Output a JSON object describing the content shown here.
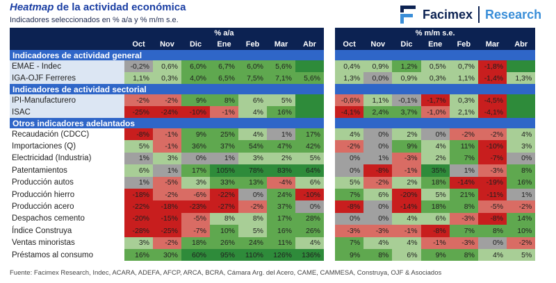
{
  "header": {
    "title_em": "Heatmap",
    "title_rest": " de la actividad económica",
    "subtitle": "Indicadores seleccionados en % a/a y % m/m s.e.",
    "brand": "Facimex",
    "brand_section": "Research"
  },
  "colors": {
    "red": "#c81e1e",
    "light_red": "#d96c64",
    "grey": "#a0a0a0",
    "light_green": "#a8ce96",
    "green": "#5fa84f",
    "dark_green": "#2e8b3a",
    "header": "#0c2252",
    "section": "#2f66c8"
  },
  "chart_data": {
    "type": "heatmap",
    "title": "Heatmap de la actividad económica",
    "groups": [
      {
        "label": "% a/a",
        "columns": [
          "Oct",
          "Nov",
          "Dic",
          "Ene",
          "Feb",
          "Mar",
          "Abr"
        ]
      },
      {
        "label": "% m/m s.e.",
        "columns": [
          "Oct",
          "Nov",
          "Dic",
          "Ene",
          "Feb",
          "Mar",
          "Abr"
        ]
      }
    ],
    "sections": [
      {
        "title": "Indicadores de actividad general",
        "rows": [
          {
            "label": "EMAE - Indec",
            "yoy": [
              "-0,2%",
              "0,6%",
              "6,0%",
              "6,7%",
              "6,0%",
              "5,6%",
              ""
            ],
            "yoy_c": [
              "grey",
              "light_green",
              "green",
              "green",
              "green",
              "green",
              "dark_green"
            ],
            "mom": [
              "0,4%",
              "0,9%",
              "1,2%",
              "0,5%",
              "0,7%",
              "-1,8%",
              ""
            ],
            "mom_c": [
              "light_green",
              "light_green",
              "green",
              "light_green",
              "light_green",
              "red",
              "dark_green"
            ]
          },
          {
            "label": "IGA-OJF Ferreres",
            "yoy": [
              "1,1%",
              "0,3%",
              "4,0%",
              "6,5%",
              "7,5%",
              "7,1%",
              "5,6%"
            ],
            "yoy_c": [
              "light_green",
              "light_green",
              "green",
              "green",
              "green",
              "green",
              "green"
            ],
            "mom": [
              "1,3%",
              "0,0%",
              "0,9%",
              "0,3%",
              "1,1%",
              "-1,4%",
              "1,3%"
            ],
            "mom_c": [
              "light_green",
              "grey",
              "light_green",
              "light_green",
              "light_green",
              "red",
              "light_green"
            ]
          }
        ]
      },
      {
        "title": "Indicadores de actividad sectorial",
        "rows": [
          {
            "label": "IPI-Manufacturero",
            "yoy": [
              "-2%",
              "-2%",
              "9%",
              "8%",
              "6%",
              "5%",
              ""
            ],
            "yoy_c": [
              "light_red",
              "light_red",
              "green",
              "green",
              "light_green",
              "light_green",
              "dark_green"
            ],
            "mom": [
              "-0,6%",
              "1,1%",
              "-0,1%",
              "-1,7%",
              "0,3%",
              "-4,5%",
              ""
            ],
            "mom_c": [
              "light_red",
              "light_green",
              "grey",
              "red",
              "light_green",
              "red",
              "dark_green"
            ]
          },
          {
            "label": "ISAC",
            "yoy": [
              "-25%",
              "-24%",
              "-10%",
              "-1%",
              "4%",
              "16%",
              ""
            ],
            "yoy_c": [
              "red",
              "red",
              "red",
              "light_red",
              "light_green",
              "green",
              "dark_green"
            ],
            "mom": [
              "-4,1%",
              "2,4%",
              "3,7%",
              "-1,0%",
              "2,1%",
              "-4,1%",
              ""
            ],
            "mom_c": [
              "red",
              "green",
              "green",
              "light_red",
              "light_green",
              "red",
              "dark_green"
            ]
          }
        ]
      },
      {
        "title": "Otros indicadores adelantados",
        "rows": [
          {
            "label": "Recaudación (CDCC)",
            "yoy": [
              "-8%",
              "-1%",
              "9%",
              "25%",
              "4%",
              "1%",
              "17%"
            ],
            "yoy_c": [
              "red",
              "light_red",
              "green",
              "green",
              "light_green",
              "grey",
              "green"
            ],
            "mom": [
              "4%",
              "0%",
              "2%",
              "0%",
              "-2%",
              "-2%",
              "4%"
            ],
            "mom_c": [
              "light_green",
              "grey",
              "light_green",
              "grey",
              "light_red",
              "light_red",
              "light_green"
            ]
          },
          {
            "label": "Importaciones (Q)",
            "yoy": [
              "5%",
              "-1%",
              "36%",
              "37%",
              "54%",
              "47%",
              "42%"
            ],
            "yoy_c": [
              "light_green",
              "light_red",
              "green",
              "green",
              "green",
              "green",
              "green"
            ],
            "mom": [
              "-2%",
              "0%",
              "9%",
              "4%",
              "11%",
              "-10%",
              "3%"
            ],
            "mom_c": [
              "light_red",
              "grey",
              "green",
              "light_green",
              "green",
              "red",
              "light_green"
            ]
          },
          {
            "label": "Electricidad (Industria)",
            "yoy": [
              "1%",
              "3%",
              "0%",
              "1%",
              "3%",
              "2%",
              "5%"
            ],
            "yoy_c": [
              "grey",
              "light_green",
              "grey",
              "grey",
              "light_green",
              "light_green",
              "light_green"
            ],
            "mom": [
              "0%",
              "1%",
              "-3%",
              "2%",
              "7%",
              "-7%",
              "0%"
            ],
            "mom_c": [
              "grey",
              "grey",
              "light_red",
              "light_green",
              "green",
              "red",
              "grey"
            ]
          },
          {
            "label": "Patentamientos",
            "yoy": [
              "6%",
              "1%",
              "17%",
              "105%",
              "78%",
              "83%",
              "64%"
            ],
            "yoy_c": [
              "light_green",
              "grey",
              "green",
              "dark_green",
              "dark_green",
              "dark_green",
              "dark_green"
            ],
            "mom": [
              "0%",
              "-8%",
              "-1%",
              "35%",
              "1%",
              "-3%",
              "8%"
            ],
            "mom_c": [
              "grey",
              "red",
              "light_red",
              "dark_green",
              "grey",
              "light_red",
              "green"
            ]
          },
          {
            "label": "Producción autos",
            "yoy": [
              "1%",
              "-5%",
              "3%",
              "33%",
              "13%",
              "-4%",
              "6%"
            ],
            "yoy_c": [
              "grey",
              "light_red",
              "light_green",
              "green",
              "green",
              "light_red",
              "light_green"
            ],
            "mom": [
              "5%",
              "-2%",
              "2%",
              "18%",
              "-14%",
              "-19%",
              "16%"
            ],
            "mom_c": [
              "light_green",
              "light_red",
              "light_green",
              "green",
              "red",
              "red",
              "green"
            ]
          },
          {
            "label": "Producción hierro",
            "yoy": [
              "-18%",
              "-2%",
              "-6%",
              "-22%",
              "0%",
              "24%",
              "-10%"
            ],
            "yoy_c": [
              "red",
              "light_red",
              "light_red",
              "red",
              "grey",
              "green",
              "red"
            ],
            "mom": [
              "7%",
              "6%",
              "-20%",
              "5%",
              "21%",
              "-11%",
              "1%"
            ],
            "mom_c": [
              "green",
              "light_green",
              "red",
              "light_green",
              "green",
              "red",
              "grey"
            ]
          },
          {
            "label": "Producción acero",
            "yoy": [
              "-22%",
              "-18%",
              "-23%",
              "-27%",
              "-2%",
              "37%",
              "0%"
            ],
            "yoy_c": [
              "red",
              "red",
              "red",
              "red",
              "light_red",
              "green",
              "grey"
            ],
            "mom": [
              "-8%",
              "0%",
              "-14%",
              "18%",
              "8%",
              "-5%",
              "-2%"
            ],
            "mom_c": [
              "red",
              "grey",
              "red",
              "green",
              "green",
              "light_red",
              "light_red"
            ]
          },
          {
            "label": "Despachos cemento",
            "yoy": [
              "-20%",
              "-15%",
              "-5%",
              "8%",
              "8%",
              "17%",
              "28%"
            ],
            "yoy_c": [
              "red",
              "red",
              "light_red",
              "light_green",
              "light_green",
              "green",
              "green"
            ],
            "mom": [
              "0%",
              "0%",
              "4%",
              "6%",
              "-3%",
              "-8%",
              "14%"
            ],
            "mom_c": [
              "grey",
              "grey",
              "light_green",
              "light_green",
              "light_red",
              "red",
              "green"
            ]
          },
          {
            "label": "Índice Construya",
            "yoy": [
              "-28%",
              "-25%",
              "-7%",
              "10%",
              "5%",
              "16%",
              "26%"
            ],
            "yoy_c": [
              "red",
              "red",
              "light_red",
              "green",
              "light_green",
              "green",
              "green"
            ],
            "mom": [
              "-3%",
              "-3%",
              "-1%",
              "-8%",
              "7%",
              "8%",
              "10%"
            ],
            "mom_c": [
              "light_red",
              "light_red",
              "light_red",
              "red",
              "green",
              "green",
              "green"
            ]
          },
          {
            "label": "Ventas minoristas",
            "yoy": [
              "3%",
              "-2%",
              "18%",
              "26%",
              "24%",
              "11%",
              "4%"
            ],
            "yoy_c": [
              "light_green",
              "light_red",
              "green",
              "green",
              "green",
              "green",
              "light_green"
            ],
            "mom": [
              "7%",
              "4%",
              "4%",
              "-1%",
              "-3%",
              "0%",
              "-2%"
            ],
            "mom_c": [
              "green",
              "light_green",
              "light_green",
              "light_red",
              "light_red",
              "grey",
              "light_red"
            ]
          },
          {
            "label": "Préstamos al consumo",
            "yoy": [
              "16%",
              "30%",
              "60%",
              "95%",
              "110%",
              "126%",
              "136%"
            ],
            "yoy_c": [
              "green",
              "green",
              "dark_green",
              "dark_green",
              "dark_green",
              "dark_green",
              "dark_green"
            ],
            "mom": [
              "9%",
              "8%",
              "6%",
              "9%",
              "8%",
              "4%",
              "5%"
            ],
            "mom_c": [
              "green",
              "green",
              "light_green",
              "green",
              "green",
              "light_green",
              "light_green"
            ]
          }
        ]
      }
    ]
  },
  "footer": {
    "source": "Fuente: Facimex Research, Indec, ACARA, ADEFA, AFCP, ARCA, BCRA, Cámara Arg. del Acero, CAME, CAMMESA, Construya, OJF & Asociados"
  }
}
